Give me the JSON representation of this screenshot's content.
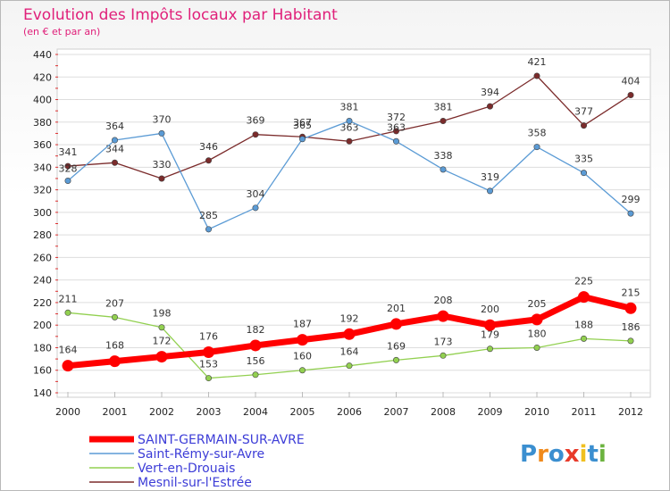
{
  "chart_data": {
    "type": "line",
    "title": "Evolution des Impôts locaux par Habitant",
    "subtitle": "(en € et par an)",
    "x": [
      "2000",
      "2001",
      "2002",
      "2003",
      "2004",
      "2005",
      "2006",
      "2007",
      "2008",
      "2009",
      "2010",
      "2011",
      "2012"
    ],
    "ylim": [
      140,
      440
    ],
    "yticks": [
      140,
      160,
      180,
      200,
      220,
      240,
      260,
      280,
      300,
      320,
      340,
      360,
      380,
      400,
      420,
      440
    ],
    "grid": "horizontal",
    "legend_position": "bottom-left",
    "series": [
      {
        "name": "SAINT-GERMAIN-SUR-AVRE",
        "color": "#ff0000",
        "values": [
          164,
          168,
          172,
          176,
          182,
          187,
          192,
          201,
          208,
          200,
          205,
          225,
          215
        ]
      },
      {
        "name": "Saint-Rémy-sur-Avre",
        "color": "#5b9bd5",
        "values": [
          328,
          364,
          370,
          285,
          304,
          365,
          381,
          363,
          338,
          319,
          358,
          335,
          299
        ]
      },
      {
        "name": "Vert-en-Drouais",
        "color": "#92d050",
        "values": [
          211,
          207,
          198,
          153,
          156,
          160,
          164,
          169,
          173,
          179,
          180,
          188,
          186
        ]
      },
      {
        "name": "Mesnil-sur-l'Estrée",
        "color": "#7b2b2b",
        "values": [
          341,
          344,
          330,
          346,
          369,
          367,
          363,
          372,
          381,
          394,
          421,
          377,
          404
        ]
      }
    ]
  },
  "brand": {
    "letters": [
      "P",
      "r",
      "o",
      "x",
      "i",
      "t",
      "i"
    ],
    "colors": [
      "#3b8fd0",
      "#f08a1c",
      "#3b8fd0",
      "#e83a2a",
      "#f0c020",
      "#3b8fd0",
      "#6cb33f"
    ]
  }
}
